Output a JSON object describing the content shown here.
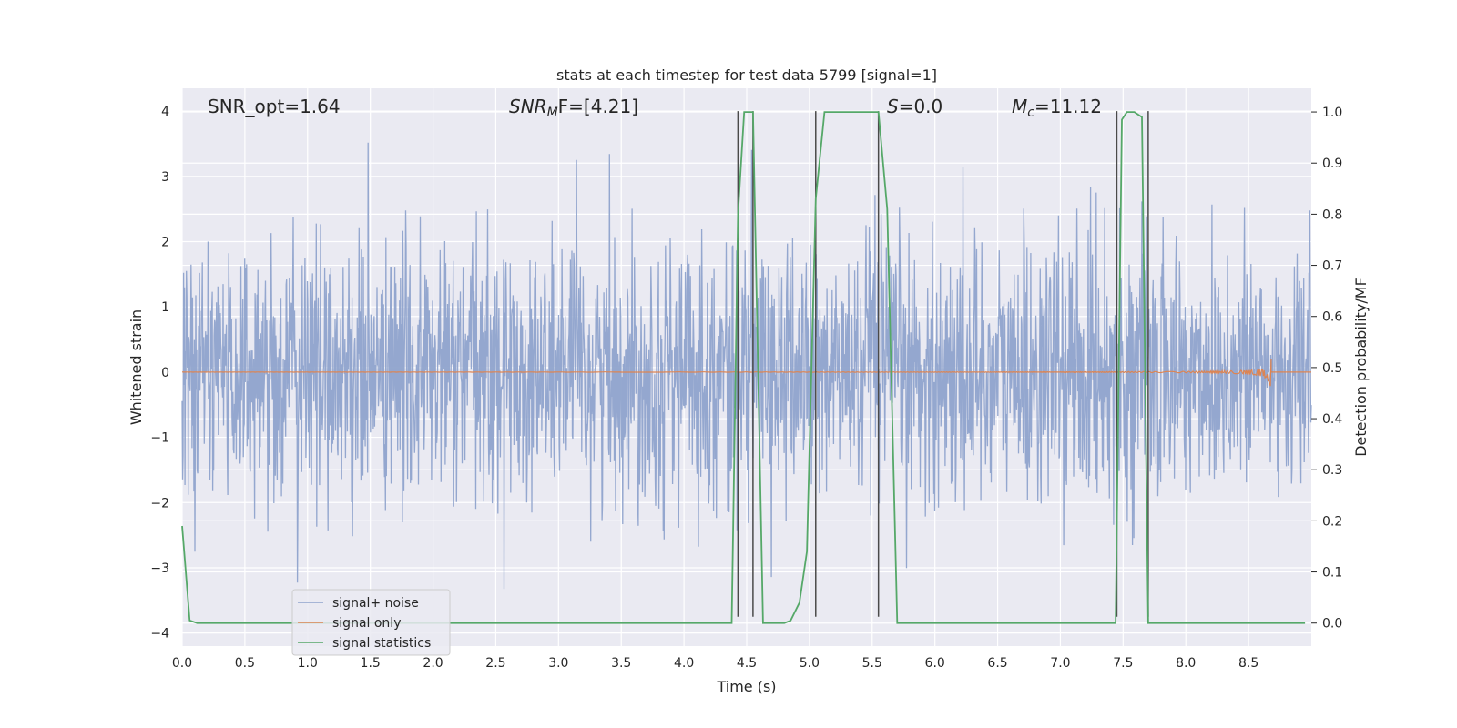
{
  "chart_data": {
    "type": "line",
    "title": "stats at each timestep for test data 5799 [signal=1]",
    "xlabel": "Time (s)",
    "ylabel_left": "Whitened strain",
    "ylabel_right": "Detection probability/MF",
    "xlim": [
      0.0,
      9.0
    ],
    "ylim_left": [
      -4.2,
      4.35
    ],
    "ylim_right": [
      -0.045,
      1.0464
    ],
    "x_ticks": [
      "0.0",
      "0.5",
      "1.0",
      "1.5",
      "2.0",
      "2.5",
      "3.0",
      "3.5",
      "4.0",
      "4.5",
      "5.0",
      "5.5",
      "6.0",
      "6.5",
      "7.0",
      "7.5",
      "8.0",
      "8.5"
    ],
    "y_left_ticks": [
      "4",
      "3",
      "2",
      "1",
      "0",
      "−1",
      "−2",
      "−3",
      "−4"
    ],
    "y_right_ticks": [
      "1.0",
      "0.9",
      "0.8",
      "0.7",
      "0.6",
      "0.5",
      "0.4",
      "0.3",
      "0.2",
      "0.1",
      "0.0"
    ],
    "grid": true,
    "legend_position": "lower-left",
    "annotations": {
      "snr_opt": "SNR_opt=1.64",
      "snr_mf_pre": "SNR",
      "snr_mf_sub": "M",
      "snr_mf_post": "F=[4.21]",
      "s_main": "S",
      "s_rest": "=0.0",
      "mc_main": "M",
      "mc_sub": "c",
      "mc_rest": "=11.12"
    },
    "series": [
      {
        "name": "signal+ noise",
        "color": "#8fa3cc",
        "kind": "noise",
        "axis": "left",
        "envelope": [
          [
            0.0,
            4.0
          ],
          [
            9.0,
            4.0
          ]
        ]
      },
      {
        "name": "signal only",
        "color": "#dd8452",
        "kind": "chirp",
        "axis": "left",
        "peak_time": 8.68,
        "peak_amplitude": 0.28
      },
      {
        "name": "signal statistics",
        "color": "#55a868",
        "kind": "line",
        "axis": "right",
        "x": [
          0.0,
          0.06,
          0.12,
          4.38,
          4.43,
          4.48,
          4.55,
          4.63,
          4.7,
          4.8,
          4.85,
          4.92,
          4.98,
          5.05,
          5.12,
          5.55,
          5.62,
          5.7,
          7.44,
          7.49,
          7.53,
          7.59,
          7.65,
          7.7,
          7.76,
          8.0,
          8.6,
          8.95
        ],
        "y": [
          0.19,
          0.005,
          0.0,
          0.0,
          0.8,
          1.0,
          1.0,
          0.0,
          0.0,
          0.0,
          0.005,
          0.04,
          0.14,
          0.83,
          1.0,
          1.0,
          0.81,
          0.0,
          0.0,
          0.985,
          1.0,
          1.0,
          0.99,
          0.0,
          0.0,
          0.0,
          0.0,
          0.0
        ]
      },
      {
        "name": "markers",
        "color": "#4a4a4a",
        "kind": "vlines",
        "axis": "left",
        "x": [
          4.43,
          4.55,
          5.05,
          5.55,
          7.45,
          7.7
        ],
        "ytop": 4.0,
        "ybottom": -3.75
      }
    ]
  }
}
